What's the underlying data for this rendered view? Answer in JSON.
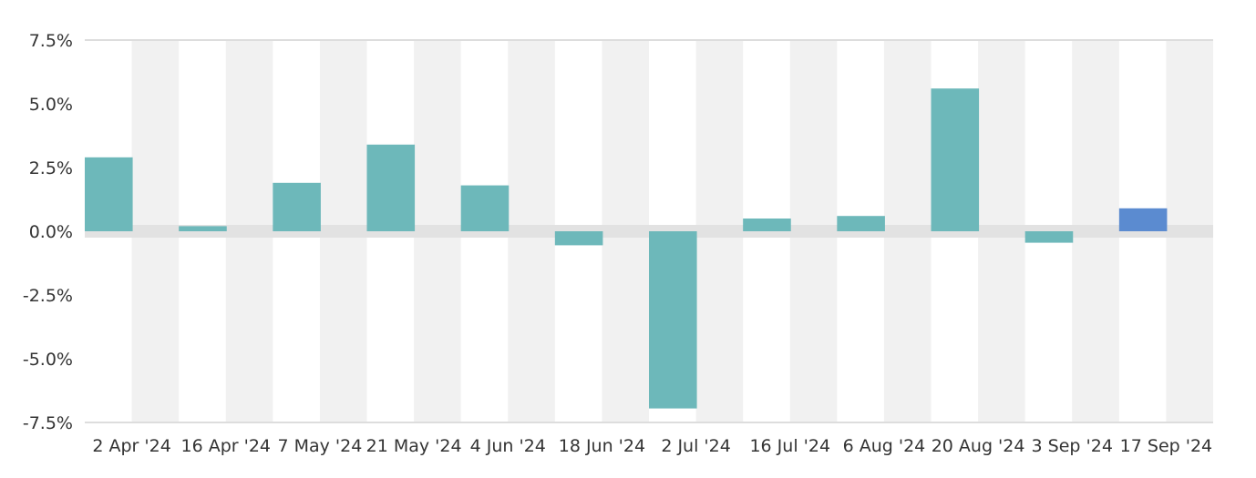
{
  "chart_data": {
    "type": "bar",
    "title": "",
    "xlabel": "",
    "ylabel": "",
    "categories": [
      "2 Apr '24",
      "16 Apr '24",
      "7 May '24",
      "21 May '24",
      "4 Jun '24",
      "18 Jun '24",
      "2 Jul '24",
      "16 Jul '24",
      "6 Aug '24",
      "20 Aug '24",
      "3 Sep '24",
      "17 Sep '24"
    ],
    "values": [
      2.9,
      0.2,
      1.9,
      3.4,
      1.8,
      -0.55,
      -6.95,
      0.5,
      0.6,
      5.6,
      -0.45,
      0.9
    ],
    "ylim": [
      -7.5,
      7.5
    ],
    "yticks": [
      7.5,
      5.0,
      2.5,
      0.0,
      -2.5,
      -5.0,
      -7.5
    ],
    "ytick_labels": [
      "7.5%",
      "5.0%",
      "2.5%",
      "0.0%",
      "-2.5%",
      "-5.0%",
      "-7.5%"
    ],
    "grid": false,
    "alternating_column_bands": true,
    "highlight_index": 11,
    "colors": {
      "bar": "#6db8ba",
      "highlight_bar": "#5b8bd0",
      "band": "#f1f1f1",
      "zero_band": "#e2e2e2",
      "axis": "#dddddd",
      "text": "#333333"
    }
  }
}
